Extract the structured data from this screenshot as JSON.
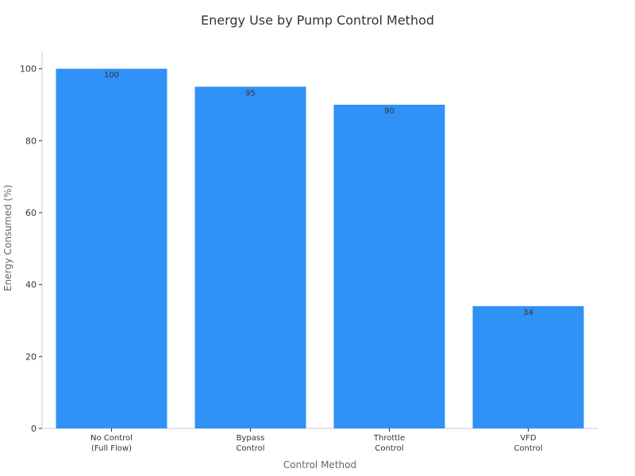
{
  "chart_data": {
    "type": "bar",
    "title": "Energy Use by Pump Control Method",
    "x_label": "Control Method",
    "y_label": "Energy Consumed (%)",
    "categories": [
      "No Control\n(Full Flow)",
      "Bypass\nControl",
      "Throttle\nControl",
      "VFD\nControl"
    ],
    "values": [
      100,
      95,
      90,
      34
    ],
    "color": "#3091f7",
    "ylim": [
      0,
      105
    ],
    "yticks": [
      0,
      20,
      40,
      60,
      80,
      100
    ],
    "grid": false
  }
}
